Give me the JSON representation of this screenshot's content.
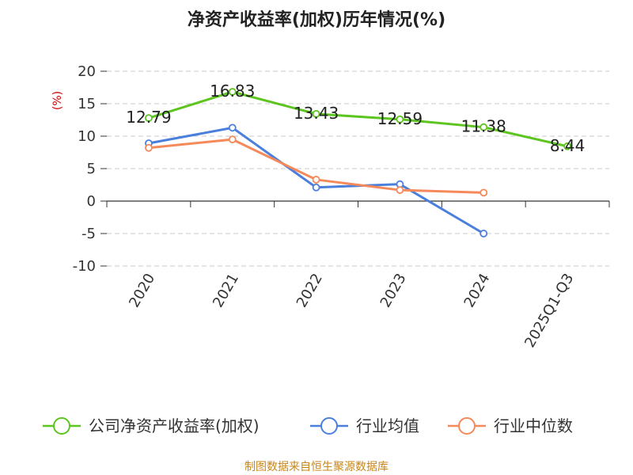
{
  "chart_data": {
    "type": "line",
    "title": "净资产收益率(加权)历年情况(%)",
    "ylabel": "(%)",
    "xlabel": "",
    "categories": [
      "2020",
      "2021",
      "2022",
      "2023",
      "2024",
      "2025Q1-Q3"
    ],
    "ylim": [
      -10,
      20
    ],
    "yticks": [
      20,
      15,
      10,
      5,
      0,
      -5,
      -10
    ],
    "ytick_labels": [
      "20",
      "15",
      "10",
      "5",
      "0",
      "-5",
      "-10"
    ],
    "grid": true,
    "legend_position": "bottom",
    "series": [
      {
        "name": "公司净资产收益率(加权)",
        "color": "#5cc51f",
        "values": [
          12.79,
          16.83,
          13.43,
          12.59,
          11.38,
          8.44
        ],
        "labels": [
          "12.79",
          "16.83",
          "13.43",
          "12.59",
          "11.38",
          "8.44"
        ]
      },
      {
        "name": "行业均值",
        "color": "#4a7fdb",
        "values": [
          8.9,
          11.3,
          2.1,
          2.6,
          -5.0,
          null
        ]
      },
      {
        "name": "行业中位数",
        "color": "#f5895a",
        "values": [
          8.2,
          9.5,
          3.3,
          1.7,
          1.3,
          null
        ]
      }
    ]
  },
  "footer": {
    "source": "制图数据来自恒生聚源数据库"
  }
}
